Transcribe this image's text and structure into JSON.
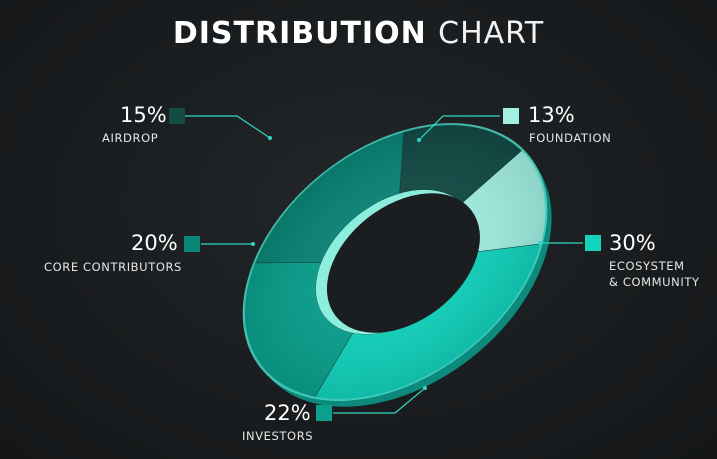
{
  "title": {
    "bold": "DISTRIBUTION",
    "light": "CHART"
  },
  "chart_data": {
    "type": "pie",
    "title": "DISTRIBUTION CHART",
    "categories": [
      "FOUNDATION",
      "ECOSYSTEM & COMMUNITY",
      "INVESTORS",
      "CORE CONTRIBUTORS",
      "AIRDROP"
    ],
    "values": [
      13,
      30,
      22,
      20,
      15
    ],
    "value_labels": [
      "13%",
      "30%",
      "22%",
      "20%",
      "15%"
    ],
    "colors": [
      "#a3efe3",
      "#12d3bd",
      "#0aa08d",
      "#0a8677",
      "#134b46"
    ],
    "legend": "callouts around chart",
    "donut": true
  },
  "labels": {
    "foundation": {
      "pct": "13%",
      "name": "FOUNDATION"
    },
    "ecosystem": {
      "pct": "30%",
      "line1": "ECOSYSTEM",
      "line2": "& COMMUNITY"
    },
    "investors": {
      "pct": "22%",
      "name": "INVESTORS"
    },
    "core": {
      "pct": "20%",
      "name": "CORE CONTRIBUTORS"
    },
    "airdrop": {
      "pct": "15%",
      "name": "AIRDROP"
    }
  }
}
